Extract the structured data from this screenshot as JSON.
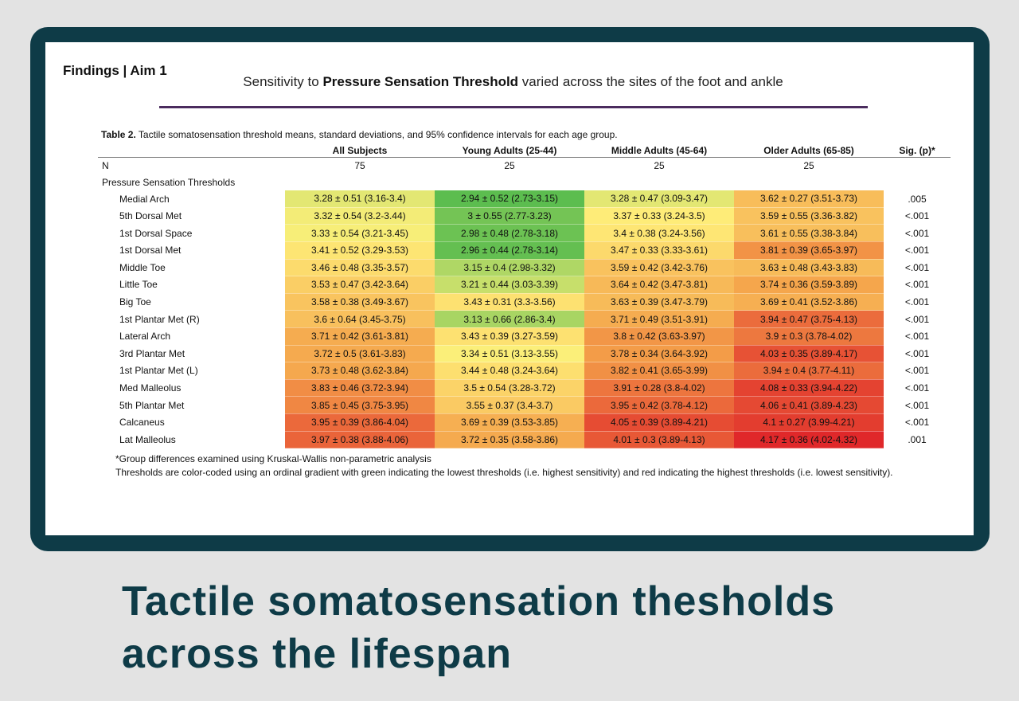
{
  "slide": {
    "findings": "Findings | Aim 1",
    "subtitle_pre": "Sensitivity to ",
    "subtitle_bold": "Pressure Sensation Threshold",
    "subtitle_post": " varied across the sites of the foot and ankle"
  },
  "table": {
    "caption_bold": "Table 2.",
    "caption_text": " Tactile somatosensation threshold means, standard deviations, and 95% confidence intervals for each age group.",
    "headers": [
      "",
      "All Subjects",
      "Young Adults (25-44)",
      "Middle Adults (45-64)",
      "Older Adults (65-85)",
      "Sig. (p)*"
    ],
    "n_label": "N",
    "n_values": [
      "75",
      "25",
      "25",
      "25",
      ""
    ],
    "section_label": "Pressure Sensation Thresholds",
    "rows": [
      {
        "site": "Medial Arch",
        "cells": [
          "3.28 ± 0.51 (3.16-3.4)",
          "2.94 ± 0.52 (2.73-3.15)",
          "3.28 ± 0.47 (3.09-3.47)",
          "3.62 ± 0.27 (3.51-3.73)"
        ],
        "sig": ".005"
      },
      {
        "site": "5th Dorsal Met",
        "cells": [
          "3.32 ± 0.54 (3.2-3.44)",
          "3 ± 0.55 (2.77-3.23)",
          "3.37 ± 0.33 (3.24-3.5)",
          "3.59 ± 0.55 (3.36-3.82)"
        ],
        "sig": "<.001"
      },
      {
        "site": "1st Dorsal Space",
        "cells": [
          "3.33 ± 0.54 (3.21-3.45)",
          "2.98 ± 0.48 (2.78-3.18)",
          "3.4 ± 0.38 (3.24-3.56)",
          "3.61 ± 0.55 (3.38-3.84)"
        ],
        "sig": "<.001"
      },
      {
        "site": "1st Dorsal Met",
        "cells": [
          "3.41 ± 0.52 (3.29-3.53)",
          "2.96 ± 0.44 (2.78-3.14)",
          "3.47 ± 0.33 (3.33-3.61)",
          "3.81 ± 0.39 (3.65-3.97)"
        ],
        "sig": "<.001"
      },
      {
        "site": "Middle Toe",
        "cells": [
          "3.46 ± 0.48 (3.35-3.57)",
          "3.15 ± 0.4 (2.98-3.32)",
          "3.59 ± 0.42 (3.42-3.76)",
          "3.63 ± 0.48 (3.43-3.83)"
        ],
        "sig": "<.001"
      },
      {
        "site": "Little Toe",
        "cells": [
          "3.53 ± 0.47 (3.42-3.64)",
          "3.21 ± 0.44 (3.03-3.39)",
          "3.64 ± 0.42 (3.47-3.81)",
          "3.74 ± 0.36 (3.59-3.89)"
        ],
        "sig": "<.001"
      },
      {
        "site": "Big Toe",
        "cells": [
          "3.58 ± 0.38 (3.49-3.67)",
          "3.43 ± 0.31 (3.3-3.56)",
          "3.63 ± 0.39 (3.47-3.79)",
          "3.69 ± 0.41 (3.52-3.86)"
        ],
        "sig": "<.001"
      },
      {
        "site": "1st Plantar Met (R)",
        "cells": [
          "3.6 ± 0.64 (3.45-3.75)",
          "3.13 ± 0.66 (2.86-3.4)",
          "3.71 ± 0.49 (3.51-3.91)",
          "3.94 ± 0.47 (3.75-4.13)"
        ],
        "sig": "<.001"
      },
      {
        "site": "Lateral Arch",
        "cells": [
          "3.71 ± 0.42 (3.61-3.81)",
          "3.43 ± 0.39 (3.27-3.59)",
          "3.8 ± 0.42 (3.63-3.97)",
          "3.9 ± 0.3 (3.78-4.02)"
        ],
        "sig": "<.001"
      },
      {
        "site": "3rd Plantar Met",
        "cells": [
          "3.72 ± 0.5 (3.61-3.83)",
          "3.34 ± 0.51 (3.13-3.55)",
          "3.78 ± 0.34 (3.64-3.92)",
          "4.03 ± 0.35 (3.89-4.17)"
        ],
        "sig": "<.001"
      },
      {
        "site": "1st Plantar Met (L)",
        "cells": [
          "3.73 ± 0.48 (3.62-3.84)",
          "3.44 ± 0.48 (3.24-3.64)",
          "3.82 ± 0.41 (3.65-3.99)",
          "3.94 ± 0.4 (3.77-4.11)"
        ],
        "sig": "<.001"
      },
      {
        "site": "Med Malleolus",
        "cells": [
          "3.83 ± 0.46 (3.72-3.94)",
          "3.5 ± 0.54 (3.28-3.72)",
          "3.91 ± 0.28 (3.8-4.02)",
          "4.08 ± 0.33 (3.94-4.22)"
        ],
        "sig": "<.001"
      },
      {
        "site": "5th Plantar Met",
        "cells": [
          "3.85 ± 0.45 (3.75-3.95)",
          "3.55 ± 0.37 (3.4-3.7)",
          "3.95 ± 0.42 (3.78-4.12)",
          "4.06 ± 0.41 (3.89-4.23)"
        ],
        "sig": "<.001"
      },
      {
        "site": "Calcaneus",
        "cells": [
          "3.95 ± 0.39 (3.86-4.04)",
          "3.69 ± 0.39 (3.53-3.85)",
          "4.05 ± 0.39 (3.89-4.21)",
          "4.1 ± 0.27 (3.99-4.21)"
        ],
        "sig": "<.001"
      },
      {
        "site": "Lat Malleolus",
        "cells": [
          "3.97 ± 0.38 (3.88-4.06)",
          "3.72 ± 0.35 (3.58-3.86)",
          "4.01 ± 0.3 (3.89-4.13)",
          "4.17 ± 0.36 (4.02-4.32)"
        ],
        "sig": ".001"
      }
    ],
    "colors": {
      "green": "#5cbd4f",
      "yellow": "#fff07a",
      "orange": "#f4a24a",
      "red": "#e0282a"
    }
  },
  "notes": {
    "line1": "*Group differences examined using Kruskal-Wallis non-parametric analysis",
    "line2": "Thresholds are color-coded using an ordinal gradient with green indicating the lowest thresholds (i.e. highest sensitivity) and red indicating the highest thresholds (i.e. lowest sensitivity)."
  },
  "title": {
    "line1": "Tactile somatosensation thesholds",
    "line2": "across the lifespan"
  }
}
